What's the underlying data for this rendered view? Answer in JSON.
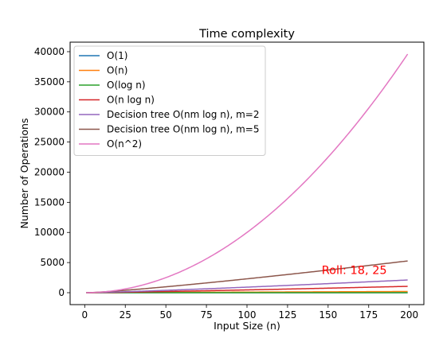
{
  "chart_data": {
    "type": "line",
    "title": "Time complexity",
    "xlabel": "Input Size (n)",
    "ylabel": "Number of Operations",
    "xlim": [
      -9,
      209
    ],
    "ylim": [
      -1980,
      41580
    ],
    "xticks": [
      0,
      25,
      50,
      75,
      100,
      125,
      150,
      175,
      200
    ],
    "yticks": [
      0,
      5000,
      10000,
      15000,
      20000,
      25000,
      30000,
      35000,
      40000
    ],
    "grid": false,
    "legend_position": "top-left",
    "annotation": {
      "text": "Roll: 18, 25",
      "x": 146,
      "y": 3100,
      "color": "#ff0000"
    },
    "series": [
      {
        "name": "O(1)",
        "formula": "1",
        "color": "#1f77b4",
        "x_range": [
          1,
          199
        ]
      },
      {
        "name": "O(n)",
        "formula": "n",
        "color": "#ff7f0e",
        "x_range": [
          1,
          199
        ]
      },
      {
        "name": "O(log n)",
        "formula": "log n",
        "color": "#2ca02c",
        "x_range": [
          1,
          199
        ]
      },
      {
        "name": "O(n log n)",
        "formula": "n log n",
        "color": "#d62728",
        "x_range": [
          1,
          199
        ]
      },
      {
        "name": "Decision tree O(nm log n), m=2",
        "formula": "n*2*log n",
        "color": "#9467bd",
        "x_range": [
          1,
          199
        ]
      },
      {
        "name": "Decision tree O(nm log n), m=5",
        "formula": "n*5*log n",
        "color": "#8c564b",
        "x_range": [
          1,
          199
        ]
      },
      {
        "name": "O(n^2)",
        "formula": "n^2",
        "color": "#e377c2",
        "x_range": [
          1,
          199
        ]
      }
    ]
  }
}
